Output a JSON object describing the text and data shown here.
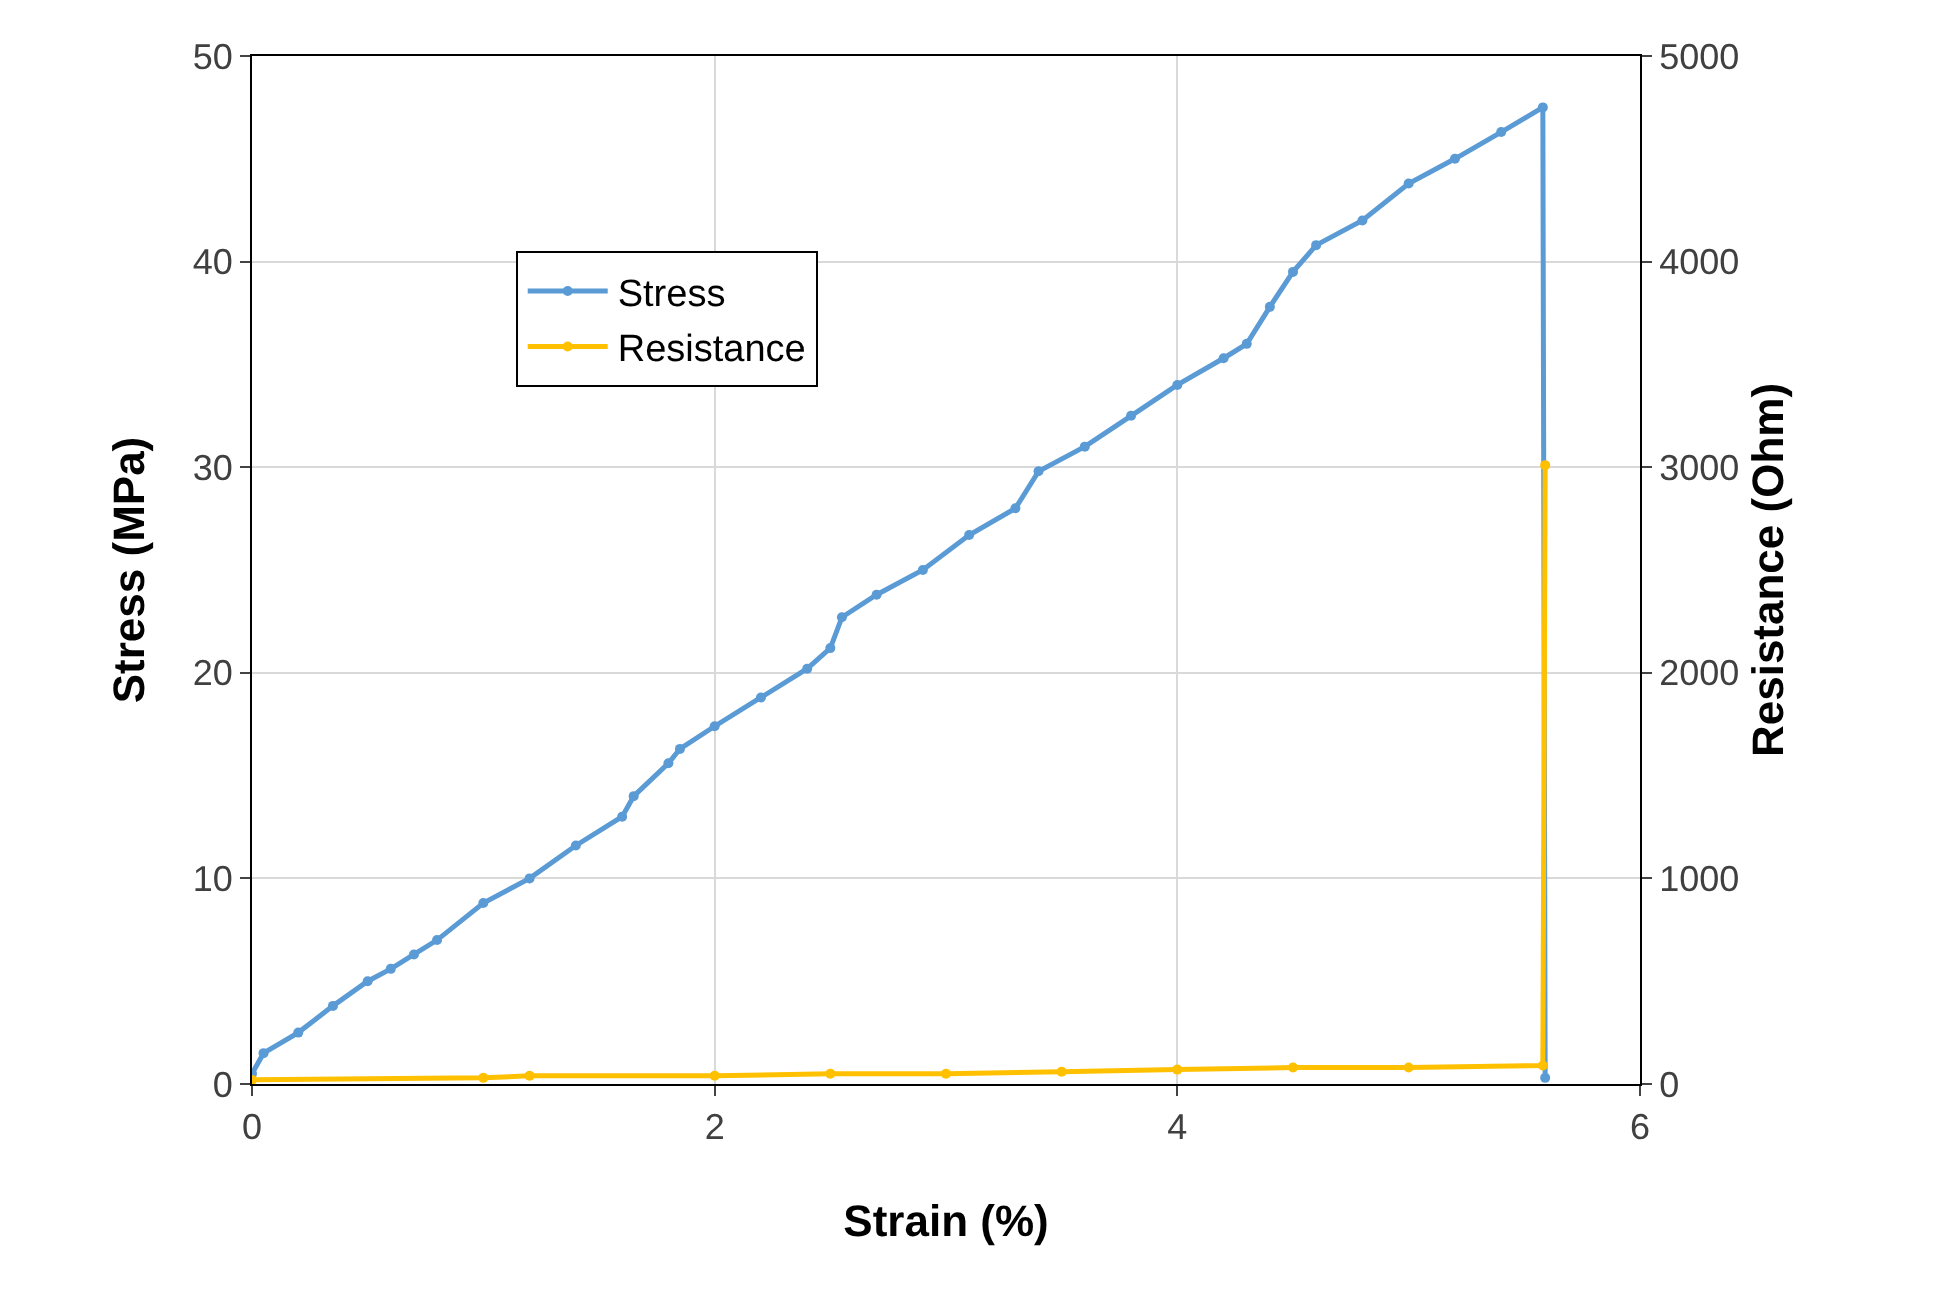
{
  "chart_data": {
    "type": "line",
    "xlabel": "Strain (%)",
    "ylabel": "Stress (MPa)",
    "y2label": "Resistance (Ohm)",
    "xlim": [
      0,
      6
    ],
    "xticks": [
      0,
      2,
      4,
      6
    ],
    "ylim": [
      0,
      50
    ],
    "yticks": [
      0,
      10,
      20,
      30,
      40,
      50
    ],
    "y2lim": [
      0,
      5000
    ],
    "y2ticks": [
      0,
      1000,
      2000,
      3000,
      4000,
      5000
    ],
    "grid": true,
    "legend": "top left",
    "marker": "circle",
    "line_style": "solid",
    "series": [
      {
        "name": "Stress",
        "color": "#5b9bd5",
        "x": [
          0,
          0.05,
          0.2,
          0.35,
          0.5,
          0.6,
          0.7,
          0.8,
          1,
          1.2,
          1.4,
          1.6,
          1.65,
          1.8,
          1.85,
          2,
          2.2,
          2.4,
          2.5,
          2.55,
          2.7,
          2.9,
          3.1,
          3.3,
          3.4,
          3.6,
          3.8,
          4,
          4.2,
          4.3,
          4.4,
          4.5,
          4.6,
          4.8,
          5,
          5.2,
          5.4,
          5.58,
          5.59
        ],
        "values": [
          0.5,
          1.5,
          2.5,
          3.8,
          5,
          5.6,
          6.3,
          7,
          8.8,
          10,
          11.6,
          13,
          14,
          15.6,
          16.3,
          17.4,
          18.8,
          20.2,
          21.2,
          22.7,
          23.8,
          25,
          26.7,
          28,
          29.8,
          31,
          32.5,
          34,
          35.3,
          36,
          37.8,
          39.5,
          40.8,
          42,
          43.8,
          45,
          46.3,
          47.5,
          0.3
        ]
      },
      {
        "name": "Resistance",
        "color": "#ffc000",
        "axis": "y2",
        "x": [
          0,
          1,
          1.2,
          2,
          2.5,
          3,
          3.5,
          4,
          4.5,
          5,
          5.58,
          5.59
        ],
        "values": [
          20,
          30,
          40,
          40,
          50,
          50,
          60,
          70,
          80,
          80,
          90,
          3010
        ]
      }
    ]
  }
}
